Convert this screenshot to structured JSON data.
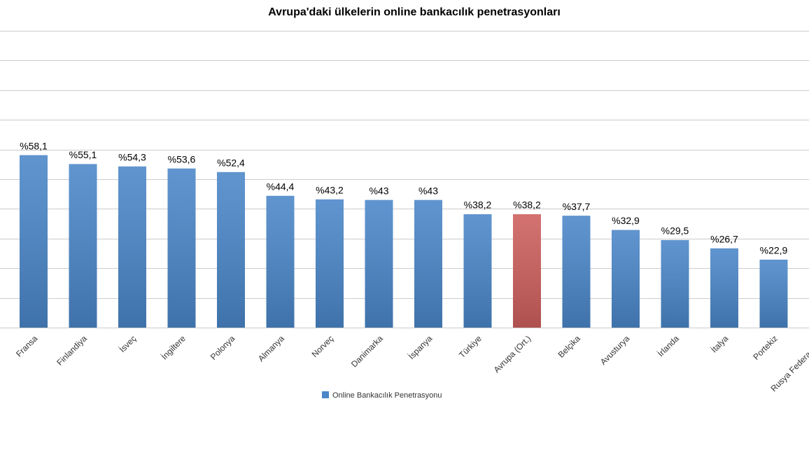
{
  "chart_data": {
    "type": "bar",
    "title": "Avrupa'daki ülkelerin online bankacılık penetrasyonları",
    "categories": [
      "Fransa",
      "Finlandiya",
      "İsveç",
      "İngiltere",
      "Polonya",
      "Almanya",
      "Norveç",
      "Danimarka",
      "İspanya",
      "Türkiye",
      "Avrupa (Ort.)",
      "Belçika",
      "Avusturya",
      "İrlanda",
      "İtalya",
      "Portekiz",
      "Rusya Federasyonu"
    ],
    "series": [
      {
        "name": "Online Bankacılık Penetrasyonu",
        "color": "#4a86c8",
        "values": [
          58.1,
          55.1,
          54.3,
          53.6,
          52.4,
          44.4,
          43.2,
          43,
          43,
          38.2,
          38.2,
          37.7,
          32.9,
          29.5,
          26.7,
          22.9,
          null
        ],
        "value_labels": [
          "%58,1",
          "%55,1",
          "%54,3",
          "%53,6",
          "%52,4",
          "%44,4",
          "%43,2",
          "%43",
          "%43",
          "%38,2",
          "%38,2",
          "%37,7",
          "%32,9",
          "%29,5",
          "%26,7",
          "%22,9",
          null
        ],
        "colors": [
          "#4a86c8",
          "#4a86c8",
          "#4a86c8",
          "#4a86c8",
          "#4a86c8",
          "#4a86c8",
          "#4a86c8",
          "#4a86c8",
          "#4a86c8",
          "#4a86c8",
          "#cd5f5c",
          "#4a86c8",
          "#4a86c8",
          "#4a86c8",
          "#4a86c8",
          "#4a86c8",
          "#4a86c8"
        ]
      }
    ],
    "ylim": [
      0,
      100
    ],
    "yticks": [
      0,
      10,
      20,
      30,
      40,
      50,
      60,
      70,
      80,
      90,
      100
    ],
    "grid": true
  }
}
